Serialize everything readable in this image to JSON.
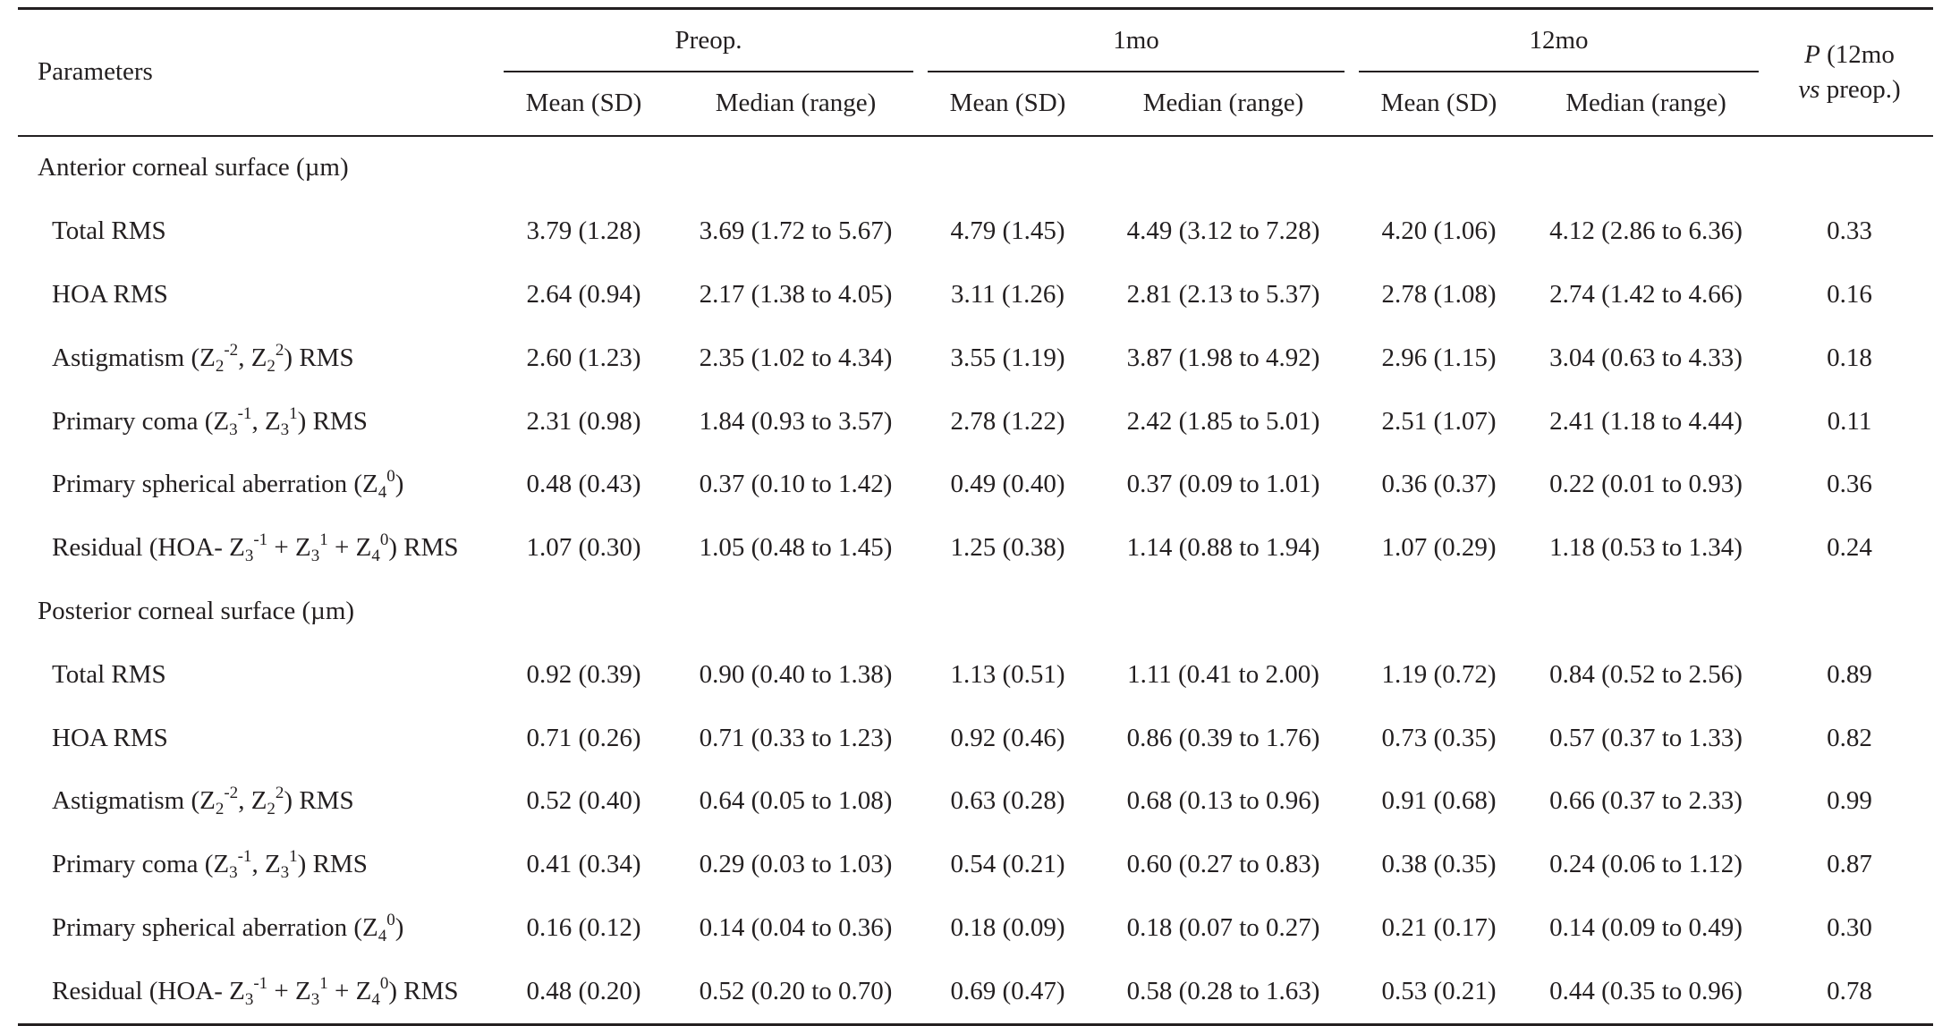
{
  "header": {
    "parameters": "Parameters",
    "groups": [
      "Preop.",
      "1mo",
      "12mo"
    ],
    "subcols": [
      "Mean (SD)",
      "Median (range)"
    ],
    "p_line1_italic": "P",
    "p_line1_rest": " (12mo",
    "p_line2_italic": "vs",
    "p_line2_rest": "  preop.)"
  },
  "sections": [
    {
      "label": "Anterior corneal surface (µm)",
      "rows": [
        {
          "label": "Total RMS",
          "values": [
            "3.79 (1.28)",
            "3.69 (1.72 to 5.67)",
            "4.79 (1.45)",
            "4.49 (3.12 to 7.28)",
            "4.20 (1.06)",
            "4.12 (2.86 to 6.36)"
          ],
          "p": "0.33"
        },
        {
          "label": "HOA RMS",
          "values": [
            "2.64 (0.94)",
            "2.17 (1.38 to 4.05)",
            "3.11 (1.26)",
            "2.81 (2.13 to 5.37)",
            "2.78 (1.08)",
            "2.74 (1.42 to 4.66)"
          ],
          "p": "0.16"
        },
        {
          "label": "Astigmatism (Z<sub>2</sub><sup>-2</sup>, Z<sub>2</sub><sup>2</sup>) RMS",
          "values": [
            "2.60 (1.23)",
            "2.35 (1.02 to 4.34)",
            "3.55 (1.19)",
            "3.87 (1.98 to 4.92)",
            "2.96 (1.15)",
            "3.04 (0.63 to 4.33)"
          ],
          "p": "0.18"
        },
        {
          "label": "Primary coma (Z<sub>3</sub><sup>-1</sup>, Z<sub>3</sub><sup>1</sup>) RMS",
          "values": [
            "2.31 (0.98)",
            "1.84 (0.93 to 3.57)",
            "2.78 (1.22)",
            "2.42 (1.85 to 5.01)",
            "2.51 (1.07)",
            "2.41 (1.18 to 4.44)"
          ],
          "p": "0.11"
        },
        {
          "label": "Primary spherical aberration (Z<sub>4</sub><sup>0</sup>)",
          "values": [
            "0.48 (0.43)",
            "0.37 (0.10 to 1.42)",
            "0.49 (0.40)",
            "0.37 (0.09 to 1.01)",
            "0.36 (0.37)",
            "0.22 (0.01 to 0.93)"
          ],
          "p": "0.36"
        },
        {
          "label": "Residual (HOA- Z<sub>3</sub><sup>-1</sup> + Z<sub>3</sub><sup>1</sup> + Z<sub>4</sub><sup>0</sup>) RMS",
          "values": [
            "1.07 (0.30)",
            "1.05 (0.48 to 1.45)",
            "1.25 (0.38)",
            "1.14 (0.88 to 1.94)",
            "1.07 (0.29)",
            "1.18 (0.53 to 1.34)"
          ],
          "p": "0.24"
        }
      ]
    },
    {
      "label": "Posterior corneal surface  (µm)",
      "rows": [
        {
          "label": "Total RMS",
          "values": [
            "0.92 (0.39)",
            "0.90 (0.40 to 1.38)",
            "1.13 (0.51)",
            "1.11 (0.41 to 2.00)",
            "1.19 (0.72)",
            "0.84 (0.52 to 2.56)"
          ],
          "p": "0.89"
        },
        {
          "label": "HOA RMS",
          "values": [
            "0.71 (0.26)",
            "0.71 (0.33 to 1.23)",
            "0.92 (0.46)",
            "0.86 (0.39 to 1.76)",
            "0.73 (0.35)",
            "0.57 (0.37 to 1.33)"
          ],
          "p": "0.82"
        },
        {
          "label": "Astigmatism (Z<sub>2</sub><sup>-2</sup>, Z<sub>2</sub><sup>2</sup>) RMS",
          "values": [
            "0.52 (0.40)",
            "0.64 (0.05 to 1.08)",
            "0.63 (0.28)",
            "0.68 (0.13 to 0.96)",
            "0.91 (0.68)",
            "0.66 (0.37 to 2.33)"
          ],
          "p": "0.99"
        },
        {
          "label": "Primary coma (Z<sub>3</sub><sup>-1</sup>, Z<sub>3</sub><sup>1</sup>) RMS",
          "values": [
            "0.41 (0.34)",
            "0.29 (0.03 to 1.03)",
            "0.54 (0.21)",
            "0.60 (0.27 to 0.83)",
            "0.38 (0.35)",
            "0.24 (0.06 to 1.12)"
          ],
          "p": "0.87"
        },
        {
          "label": "Primary spherical aberration (Z<sub>4</sub><sup>0</sup>)",
          "values": [
            "0.16 (0.12)",
            "0.14 (0.04 to 0.36)",
            "0.18 (0.09)",
            "0.18 (0.07 to 0.27)",
            "0.21 (0.17)",
            "0.14 (0.09 to 0.49)"
          ],
          "p": "0.30"
        },
        {
          "label": "Residual (HOA- Z<sub>3</sub><sup>-1</sup> + Z<sub>3</sub><sup>1</sup> + Z<sub>4</sub><sup>0</sup>) RMS",
          "values": [
            "0.48 (0.20)",
            "0.52 (0.20 to 0.70)",
            "0.69 (0.47)",
            "0.58 (0.28 to 1.63)",
            "0.53 (0.21)",
            "0.44 (0.35 to 0.96)"
          ],
          "p": "0.78"
        }
      ]
    }
  ]
}
